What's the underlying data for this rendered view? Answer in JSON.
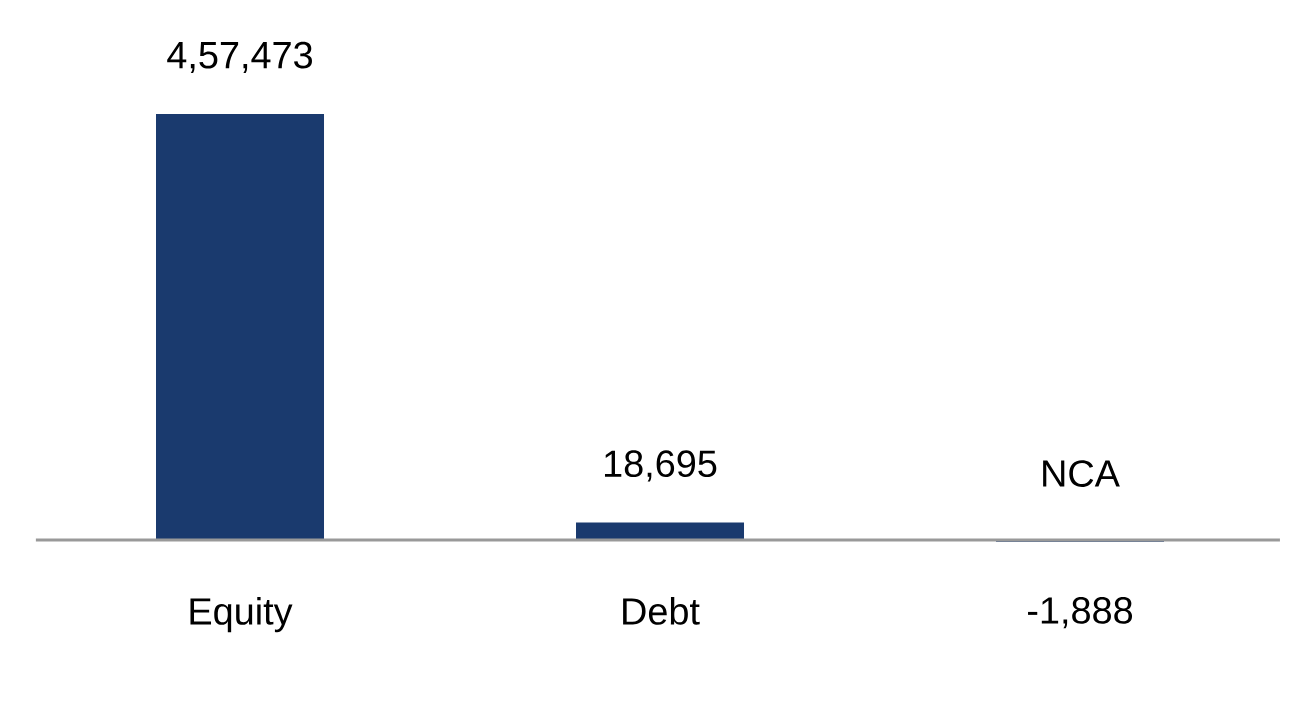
{
  "chart_data": {
    "type": "bar",
    "categories": [
      "Equity",
      "Debt",
      "NCA"
    ],
    "values": [
      457473,
      18695,
      -1888
    ],
    "value_labels": [
      "4,57,473",
      "18,695",
      "-1,888"
    ],
    "color": "#1a3a6e"
  }
}
